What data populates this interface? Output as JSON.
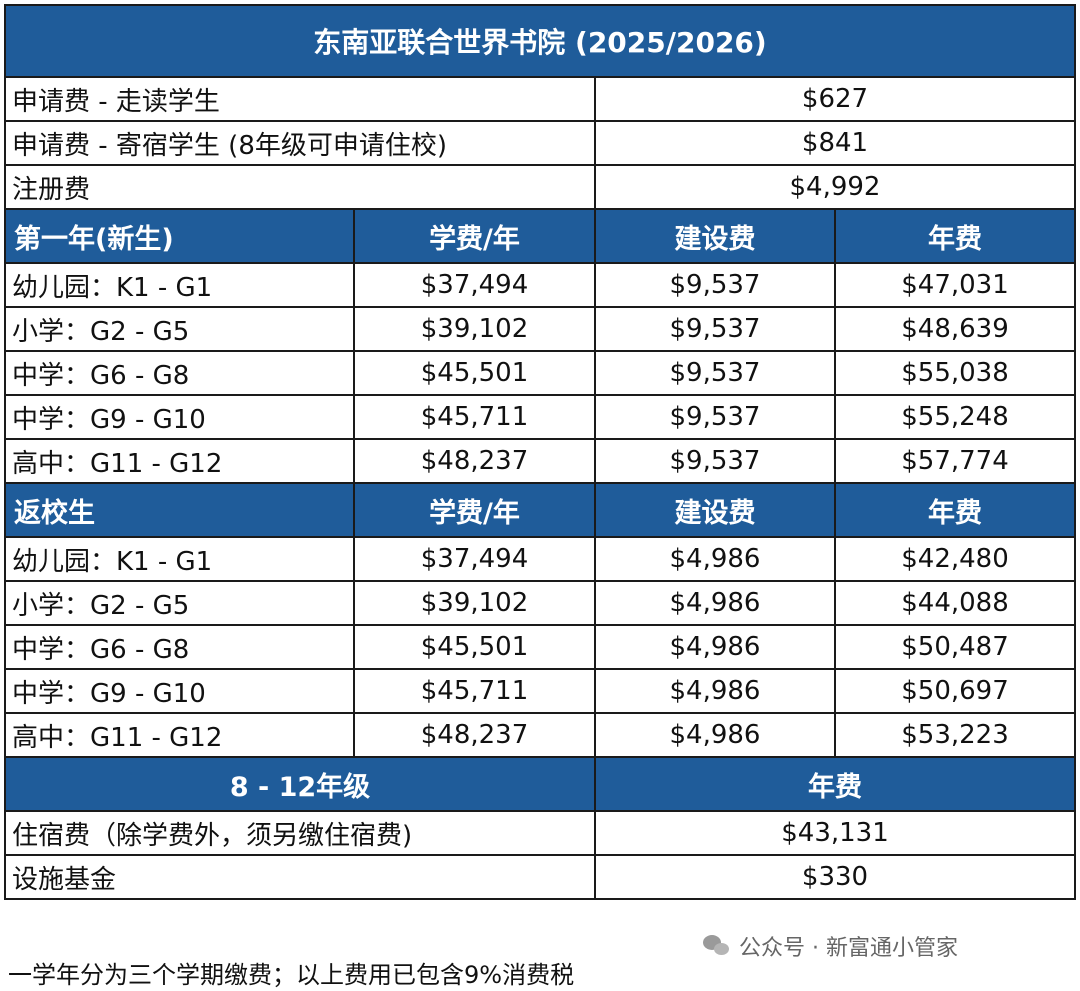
{
  "title": "东南亚联合世界书院 (2025/2026)",
  "fees_top": [
    {
      "label": "申请费 - 走读学生",
      "value": "$627"
    },
    {
      "label": "申请费 - 寄宿学生 (8年级可申请住校)",
      "value": "$841"
    },
    {
      "label": "注册费",
      "value": "$4,992"
    }
  ],
  "new_students": {
    "header": {
      "group": "第一年(新生)",
      "tuition": "学费/年",
      "building": "建设费",
      "annual": "年费"
    },
    "rows": [
      {
        "grade": "幼儿园：K1 - G1",
        "tuition": "$37,494",
        "building": "$9,537",
        "annual": "$47,031"
      },
      {
        "grade": "小学：G2 - G5",
        "tuition": "$39,102",
        "building": "$9,537",
        "annual": "$48,639"
      },
      {
        "grade": "中学：G6 - G8",
        "tuition": "$45,501",
        "building": "$9,537",
        "annual": "$55,038"
      },
      {
        "grade": "中学：G9 - G10",
        "tuition": "$45,711",
        "building": "$9,537",
        "annual": "$55,248"
      },
      {
        "grade": "高中：G11 - G12",
        "tuition": "$48,237",
        "building": "$9,537",
        "annual": "$57,774"
      }
    ]
  },
  "returning_students": {
    "header": {
      "group": "返校生",
      "tuition": "学费/年",
      "building": "建设费",
      "annual": "年费"
    },
    "rows": [
      {
        "grade": "幼儿园：K1 - G1",
        "tuition": "$37,494",
        "building": "$4,986",
        "annual": "$42,480"
      },
      {
        "grade": "小学：G2 - G5",
        "tuition": "$39,102",
        "building": "$4,986",
        "annual": "$44,088"
      },
      {
        "grade": "中学：G6 - G8",
        "tuition": "$45,501",
        "building": "$4,986",
        "annual": "$50,487"
      },
      {
        "grade": "中学：G9 - G10",
        "tuition": "$45,711",
        "building": "$4,986",
        "annual": "$50,697"
      },
      {
        "grade": "高中：G11 - G12",
        "tuition": "$48,237",
        "building": "$4,986",
        "annual": "$53,223"
      }
    ]
  },
  "boarding": {
    "header": {
      "group": "8 - 12年级",
      "annual": "年费"
    },
    "rows": [
      {
        "label": "住宿费（除学费外，须另缴住宿费)",
        "value": "$43,131"
      },
      {
        "label": "设施基金",
        "value": "$330"
      }
    ]
  },
  "watermark": "公众号 · 新富通小管家",
  "footnote": "一学年分为三个学期缴费；以上费用已包含9%消费税",
  "colors": {
    "header_bg": "#1f5c9a",
    "header_text": "#ffffff",
    "border": "#1a1a1a"
  }
}
